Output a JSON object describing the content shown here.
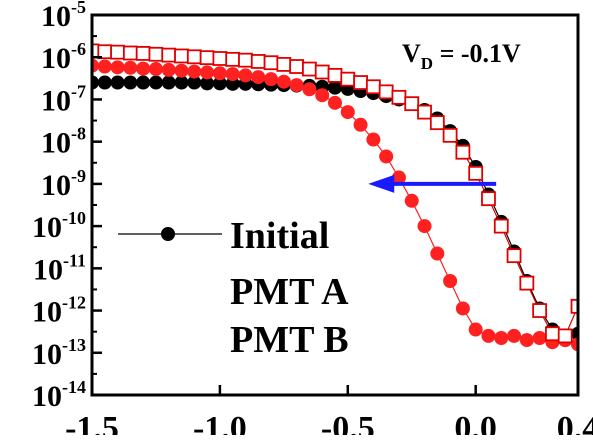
{
  "chart_data": {
    "type": "scatter",
    "xlim": [
      -1.5,
      0.4
    ],
    "ylim_log10": [
      -14,
      -5
    ],
    "y_scale": "log",
    "grid": false,
    "x_ticks": [
      {
        "value": -1.5,
        "label": "-1.5"
      },
      {
        "value": -1.0,
        "label": "-1.0"
      },
      {
        "value": -0.5,
        "label": "-0.5"
      },
      {
        "value": 0.0,
        "label": "0.0"
      },
      {
        "value": 0.4,
        "label": "0.4"
      }
    ],
    "y_ticks": [
      {
        "exp": -5,
        "base": "10",
        "sup": "-5"
      },
      {
        "exp": -6,
        "base": "10",
        "sup": "-6"
      },
      {
        "exp": -7,
        "base": "10",
        "sup": "-7"
      },
      {
        "exp": -8,
        "base": "10",
        "sup": "-8"
      },
      {
        "exp": -9,
        "base": "10",
        "sup": "-9"
      },
      {
        "exp": -10,
        "base": "10",
        "sup": "-10"
      },
      {
        "exp": -11,
        "base": "10",
        "sup": "-11"
      },
      {
        "exp": -12,
        "base": "10",
        "sup": "-12"
      },
      {
        "exp": -13,
        "base": "10",
        "sup": "-13"
      },
      {
        "exp": -14,
        "base": "10",
        "sup": "-14"
      }
    ],
    "annotation": {
      "main": "V",
      "sub": "D",
      "rest": " = -0.1V"
    },
    "arrow": {
      "x_from": 0.08,
      "x_to": -0.42,
      "log10_y": -9,
      "color": "#1a1aff"
    },
    "legend": {
      "placement": "lower-left"
    },
    "series": [
      {
        "name": "Initial",
        "marker": "filled-circle",
        "color": "#000000",
        "x": [
          -1.5,
          -1.45,
          -1.4,
          -1.35,
          -1.3,
          -1.25,
          -1.2,
          -1.15,
          -1.1,
          -1.05,
          -1.0,
          -0.95,
          -0.9,
          -0.85,
          -0.8,
          -0.75,
          -0.7,
          -0.65,
          -0.6,
          -0.55,
          -0.5,
          -0.45,
          -0.4,
          -0.35,
          -0.3,
          -0.25,
          -0.2,
          -0.15,
          -0.1,
          -0.05,
          0.0,
          0.05,
          0.1,
          0.15,
          0.2,
          0.25,
          0.3,
          0.35,
          0.4
        ],
        "log10_y": [
          -6.6,
          -6.6,
          -6.6,
          -6.6,
          -6.6,
          -6.6,
          -6.6,
          -6.6,
          -6.6,
          -6.62,
          -6.62,
          -6.63,
          -6.63,
          -6.64,
          -6.65,
          -6.66,
          -6.67,
          -6.68,
          -6.7,
          -6.72,
          -6.75,
          -6.8,
          -6.85,
          -6.92,
          -7.0,
          -7.1,
          -7.25,
          -7.45,
          -7.75,
          -8.1,
          -8.6,
          -9.25,
          -9.9,
          -10.6,
          -11.3,
          -11.95,
          -12.45,
          -12.7,
          -12.55
        ]
      },
      {
        "name": "PMT A",
        "marker": "filled-circle",
        "color": "#ff2020",
        "x": [
          -1.5,
          -1.45,
          -1.4,
          -1.35,
          -1.3,
          -1.25,
          -1.2,
          -1.15,
          -1.1,
          -1.05,
          -1.0,
          -0.95,
          -0.9,
          -0.85,
          -0.8,
          -0.75,
          -0.7,
          -0.65,
          -0.6,
          -0.55,
          -0.5,
          -0.45,
          -0.4,
          -0.35,
          -0.3,
          -0.25,
          -0.2,
          -0.15,
          -0.1,
          -0.05,
          0.0,
          0.05,
          0.1,
          0.15,
          0.2,
          0.25,
          0.3,
          0.35,
          0.4
        ],
        "log10_y": [
          -6.2,
          -6.22,
          -6.24,
          -6.25,
          -6.27,
          -6.28,
          -6.3,
          -6.32,
          -6.34,
          -6.36,
          -6.38,
          -6.4,
          -6.43,
          -6.47,
          -6.52,
          -6.58,
          -6.66,
          -6.76,
          -6.9,
          -7.08,
          -7.3,
          -7.6,
          -7.95,
          -8.35,
          -8.85,
          -9.4,
          -10.0,
          -10.65,
          -11.3,
          -11.95,
          -12.45,
          -12.6,
          -12.65,
          -12.6,
          -12.7,
          -12.65,
          -12.75,
          -12.7,
          -12.8
        ]
      },
      {
        "name": "PMT B",
        "marker": "open-square",
        "color": "#e00000",
        "x": [
          -1.5,
          -1.45,
          -1.4,
          -1.35,
          -1.3,
          -1.25,
          -1.2,
          -1.15,
          -1.1,
          -1.05,
          -1.0,
          -0.95,
          -0.9,
          -0.85,
          -0.8,
          -0.75,
          -0.7,
          -0.65,
          -0.6,
          -0.55,
          -0.5,
          -0.45,
          -0.4,
          -0.35,
          -0.3,
          -0.25,
          -0.2,
          -0.15,
          -0.1,
          -0.05,
          0.0,
          0.05,
          0.1,
          0.15,
          0.2,
          0.25,
          0.3,
          0.35,
          0.4
        ],
        "log10_y": [
          -5.85,
          -5.87,
          -5.88,
          -5.9,
          -5.91,
          -5.93,
          -5.95,
          -5.97,
          -5.99,
          -6.01,
          -6.03,
          -6.05,
          -6.07,
          -6.1,
          -6.13,
          -6.17,
          -6.22,
          -6.28,
          -6.35,
          -6.43,
          -6.52,
          -6.6,
          -6.7,
          -6.82,
          -6.95,
          -7.1,
          -7.3,
          -7.55,
          -7.85,
          -8.25,
          -8.75,
          -9.35,
          -10.0,
          -10.7,
          -11.35,
          -12.0,
          -12.55,
          -12.6,
          -11.9
        ]
      }
    ]
  }
}
